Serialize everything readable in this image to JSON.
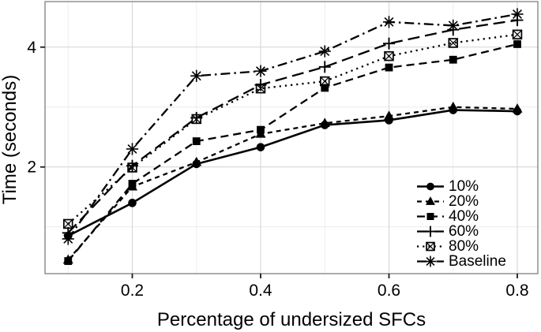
{
  "chart_data": {
    "type": "line",
    "title": "",
    "xlabel": "Percentage of undersized SFCs",
    "ylabel": "Time (seconds)",
    "x": [
      0.1,
      0.2,
      0.3,
      0.4,
      0.5,
      0.6,
      0.7,
      0.8
    ],
    "series": [
      {
        "name": "10%",
        "marker": "filled-circle",
        "linestyle": "solid",
        "values": [
          0.85,
          1.4,
          2.05,
          2.33,
          2.7,
          2.78,
          2.95,
          2.93
        ]
      },
      {
        "name": "20%",
        "marker": "filled-triangle",
        "linestyle": "dashed-short",
        "values": [
          0.45,
          1.67,
          2.08,
          2.55,
          2.73,
          2.85,
          3.0,
          2.97
        ]
      },
      {
        "name": "40%",
        "marker": "filled-square",
        "linestyle": "dashed-medium",
        "values": [
          0.43,
          1.72,
          2.43,
          2.62,
          3.32,
          3.66,
          3.79,
          4.05
        ]
      },
      {
        "name": "60%",
        "marker": "plus",
        "linestyle": "dashed-long",
        "values": [
          0.9,
          2.02,
          2.82,
          3.37,
          3.67,
          4.06,
          4.29,
          4.45
        ]
      },
      {
        "name": "80%",
        "marker": "boxed-x",
        "linestyle": "dotted",
        "values": [
          1.05,
          1.99,
          2.8,
          3.31,
          3.43,
          3.85,
          4.07,
          4.21
        ]
      },
      {
        "name": "Baseline",
        "marker": "asterisk",
        "linestyle": "dash-dot",
        "values": [
          0.8,
          2.3,
          3.52,
          3.6,
          3.93,
          4.42,
          4.36,
          4.55
        ]
      }
    ],
    "xlim": [
      0.064,
      0.832
    ],
    "ylim": [
      0.22,
      4.76
    ],
    "xticks": {
      "values": [
        0.2,
        0.4,
        0.6,
        0.8
      ],
      "labels": [
        "0.2",
        "0.4",
        "0.6",
        "0.8"
      ]
    },
    "yticks": {
      "values": [
        2,
        4
      ],
      "labels": [
        "2",
        "4"
      ]
    },
    "x_minor_grid": [
      0.1,
      0.3,
      0.5,
      0.7
    ],
    "y_minor_grid": [
      1,
      3
    ],
    "grid": "on",
    "legend_position": "bottom-right",
    "colors": {
      "series": "#000000",
      "grid_major": "#d6d6d6",
      "grid_minor": "#ebebeb",
      "panel_border": "#7f7f7f",
      "tick": "#1a1a1a",
      "text": "#000000",
      "background": "#ffffff"
    }
  }
}
